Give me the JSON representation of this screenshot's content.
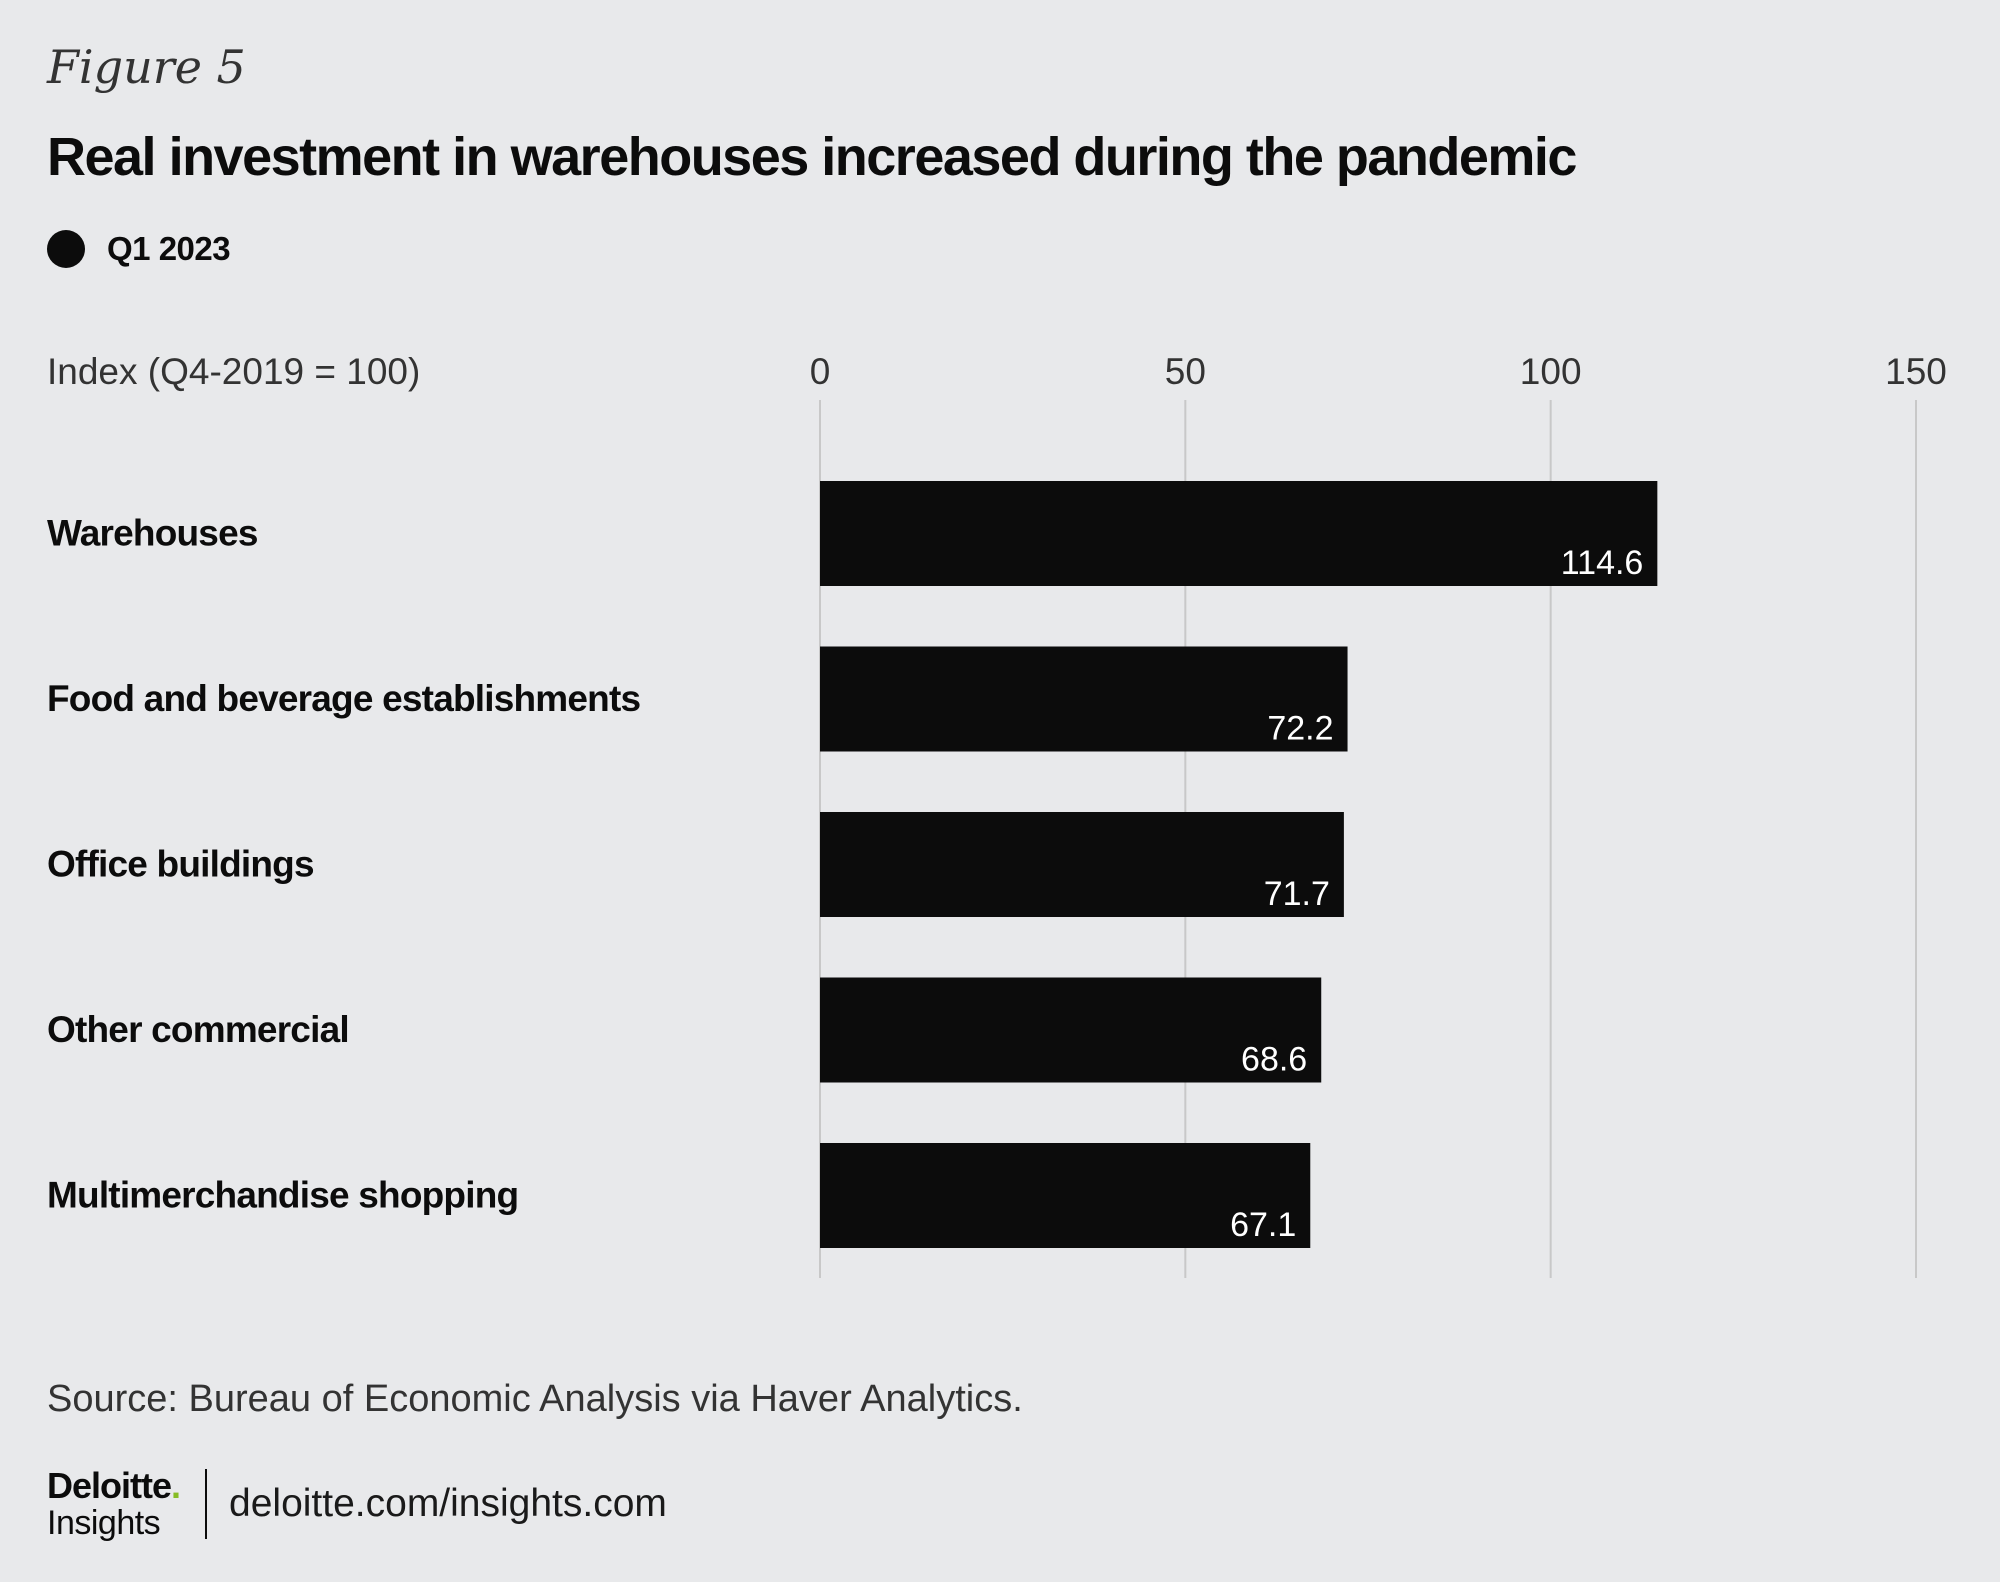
{
  "figure_label": "Figure 5",
  "title": "Real investment in warehouses increased during the pandemic",
  "legend": {
    "label": "Q1 2023",
    "color": "#0c0c0c"
  },
  "source": "Source: Bureau of Economic Analysis via Haver Analytics.",
  "footer": {
    "logo_word": "Deloitte",
    "logo_dot": ".",
    "logo_sub": "Insights",
    "url": "deloitte.com/insights.com"
  },
  "colors": {
    "background": "#e8e9eb",
    "bar": "#0c0c0c",
    "gridline": "#c8c8c8",
    "bar_label": "#ffffff",
    "brand_green": "#86bc25"
  },
  "chart_data": {
    "type": "bar",
    "orientation": "horizontal",
    "title": "Real investment in warehouses increased during the pandemic",
    "xlabel": "Index (Q4-2019 = 100)",
    "ylabel": "",
    "xlim": [
      0,
      150
    ],
    "xticks": [
      0,
      50,
      100,
      150
    ],
    "grid": true,
    "legend_position": "top-left",
    "categories": [
      "Warehouses",
      "Food and beverage establishments",
      "Office buildings",
      "Other commercial",
      "Multimerchandise shopping"
    ],
    "series": [
      {
        "name": "Q1 2023",
        "values": [
          114.6,
          72.2,
          71.7,
          68.6,
          67.1
        ]
      }
    ]
  }
}
